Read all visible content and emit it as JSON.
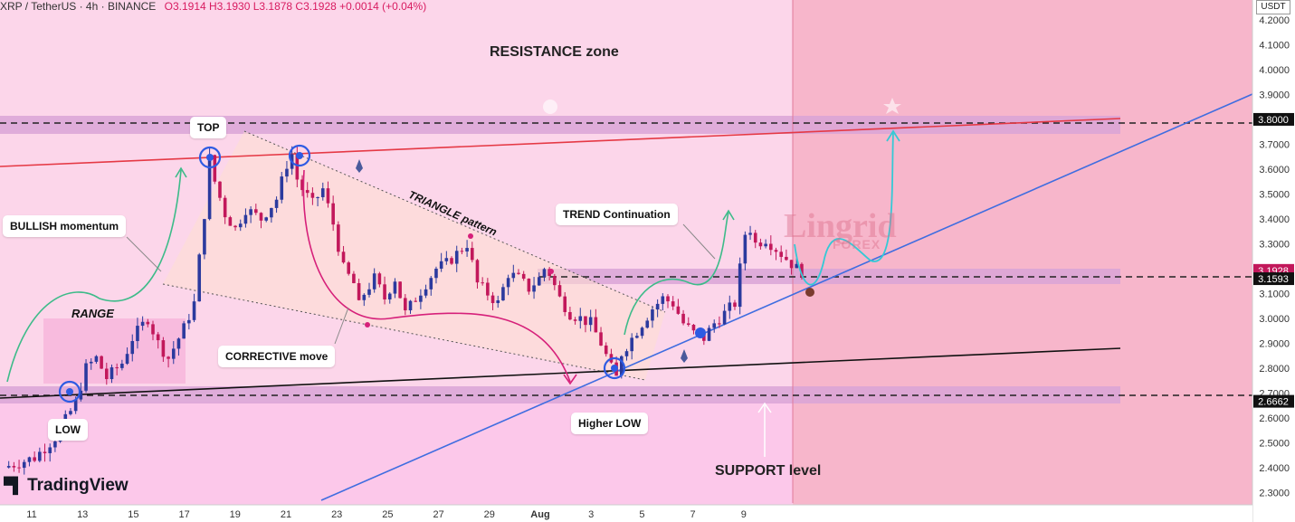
{
  "header": {
    "symbol": "XRP / TetherUS · 4h · BINANCE",
    "ohlc": "O3.1914 H3.1930 L3.1878 C3.1928 +0.0014 (+0.04%)"
  },
  "axis": {
    "currency": "USDT"
  },
  "annotations": {
    "resistance_zone": "RESISTANCE zone",
    "top": "TOP",
    "bullish_momentum": "BULLISH momentum",
    "range": "RANGE",
    "low": "LOW",
    "corrective_move": "CORRECTIVE move",
    "triangle_pattern": "TRIANGLE pattern",
    "trend_continuation": "TREND Continuation",
    "higher_low": "Higher LOW",
    "support_level": "SUPPORT level"
  },
  "watermark": {
    "line1": "Lingrid",
    "line2": "FOREX"
  },
  "branding": {
    "logo": "TradingView"
  },
  "colors": {
    "up": "#2b3a9e",
    "down": "#c2185b",
    "resistance_line": "#e53945",
    "trendline": "#3f6de0",
    "support_line": "#111111",
    "curve_green": "#3dbb89",
    "curve_magenta": "#d6207a",
    "curve_cyan": "#34c9d6"
  },
  "chart_data": {
    "type": "candlestick",
    "symbol": "XRP / TetherUS",
    "timeframe": "4h",
    "exchange": "BINANCE",
    "y_range": [
      2.25,
      4.28
    ],
    "y_ticks": [
      "4.2000",
      "4.1000",
      "4.0000",
      "3.9000",
      "3.8000",
      "3.7000",
      "3.6000",
      "3.5000",
      "3.4000",
      "3.3000",
      "3.2000",
      "3.1000",
      "3.0000",
      "2.9000",
      "2.8000",
      "2.7000",
      "2.6000",
      "2.5000",
      "2.4000",
      "2.3000"
    ],
    "x_ticks": [
      "11",
      "13",
      "15",
      "17",
      "19",
      "21",
      "23",
      "25",
      "27",
      "29",
      "Aug",
      "3",
      "5",
      "7",
      "9"
    ],
    "levels": [
      {
        "name": "resistance",
        "value": 3.8,
        "label": "3.8000"
      },
      {
        "name": "last_price",
        "value": 3.1928,
        "label": "3.1928"
      },
      {
        "name": "support_mid",
        "value": 3.1593,
        "label": "3.1593"
      },
      {
        "name": "support",
        "value": 2.6662,
        "label": "2.6662"
      }
    ],
    "path": [
      [
        0,
        2.4
      ],
      [
        6,
        2.44
      ],
      [
        10,
        2.52
      ],
      [
        14,
        2.66
      ],
      [
        16,
        2.8
      ],
      [
        18,
        2.84
      ],
      [
        20,
        2.76
      ],
      [
        23,
        2.82
      ],
      [
        25,
        2.92
      ],
      [
        28,
        3.0
      ],
      [
        30,
        2.9
      ],
      [
        32,
        2.84
      ],
      [
        35,
        2.96
      ],
      [
        37,
        3.06
      ],
      [
        39,
        3.42
      ],
      [
        40,
        3.64
      ],
      [
        41,
        3.55
      ],
      [
        43,
        3.42
      ],
      [
        45,
        3.36
      ],
      [
        47,
        3.44
      ],
      [
        50,
        3.4
      ],
      [
        53,
        3.48
      ],
      [
        55,
        3.62
      ],
      [
        56,
        3.66
      ],
      [
        57,
        3.56
      ],
      [
        58,
        3.52
      ],
      [
        60,
        3.46
      ],
      [
        62,
        3.52
      ],
      [
        64,
        3.38
      ],
      [
        66,
        3.2
      ],
      [
        68,
        3.14
      ],
      [
        69,
        3.05
      ],
      [
        70,
        3.1
      ],
      [
        72,
        3.16
      ],
      [
        74,
        3.08
      ],
      [
        76,
        3.16
      ],
      [
        78,
        3.02
      ],
      [
        80,
        3.08
      ],
      [
        82,
        3.14
      ],
      [
        84,
        3.2
      ],
      [
        86,
        3.22
      ],
      [
        88,
        3.26
      ],
      [
        90,
        3.3
      ],
      [
        91,
        3.22
      ],
      [
        92,
        3.14
      ],
      [
        94,
        3.1
      ],
      [
        96,
        3.06
      ],
      [
        98,
        3.18
      ],
      [
        100,
        3.16
      ],
      [
        102,
        3.12
      ],
      [
        104,
        3.16
      ],
      [
        105,
        3.2
      ],
      [
        106,
        3.18
      ],
      [
        108,
        3.08
      ],
      [
        110,
        3.02
      ],
      [
        112,
        3.0
      ],
      [
        114,
        2.98
      ],
      [
        116,
        2.9
      ],
      [
        118,
        2.8
      ],
      [
        119,
        2.76
      ],
      [
        120,
        2.86
      ],
      [
        122,
        2.92
      ],
      [
        124,
        2.98
      ],
      [
        126,
        3.04
      ],
      [
        128,
        3.08
      ],
      [
        130,
        3.06
      ],
      [
        132,
        2.98
      ],
      [
        134,
        2.94
      ],
      [
        136,
        2.92
      ],
      [
        138,
        2.98
      ],
      [
        140,
        3.02
      ],
      [
        142,
        3.06
      ],
      [
        143,
        3.2
      ],
      [
        144,
        3.34
      ],
      [
        145,
        3.36
      ],
      [
        146,
        3.3
      ],
      [
        148,
        3.32
      ],
      [
        150,
        3.28
      ],
      [
        152,
        3.24
      ],
      [
        154,
        3.2
      ],
      [
        155,
        3.19
      ]
    ]
  }
}
